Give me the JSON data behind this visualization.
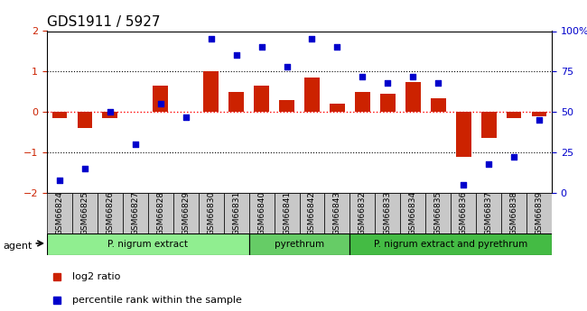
{
  "title": "GDS1911 / 5927",
  "samples": [
    "GSM66824",
    "GSM66825",
    "GSM66826",
    "GSM66827",
    "GSM66828",
    "GSM66829",
    "GSM66830",
    "GSM66831",
    "GSM66840",
    "GSM66841",
    "GSM66842",
    "GSM66843",
    "GSM66832",
    "GSM66833",
    "GSM66834",
    "GSM66835",
    "GSM66836",
    "GSM66837",
    "GSM66838",
    "GSM66839"
  ],
  "log2_ratio": [
    -0.15,
    -0.4,
    -0.15,
    0.0,
    0.65,
    0.0,
    1.0,
    0.5,
    0.65,
    0.3,
    0.85,
    0.2,
    0.5,
    0.45,
    0.75,
    0.35,
    -1.1,
    -0.65,
    -0.15,
    -0.1
  ],
  "percentile": [
    8,
    15,
    50,
    30,
    55,
    47,
    95,
    85,
    90,
    78,
    95,
    90,
    72,
    68,
    72,
    68,
    5,
    18,
    22,
    45
  ],
  "groups": [
    {
      "label": "P. nigrum extract",
      "start": 0,
      "end": 7,
      "color": "#90EE90"
    },
    {
      "label": "pyrethrum",
      "start": 8,
      "end": 11,
      "color": "#66CC66"
    },
    {
      "label": "P. nigrum extract and pyrethrum",
      "start": 12,
      "end": 19,
      "color": "#44BB44"
    }
  ],
  "bar_color": "#CC2200",
  "dot_color": "#0000CC",
  "bar_width": 0.6,
  "ylim": [
    -2,
    2
  ],
  "y2lim": [
    0,
    100
  ],
  "yticks": [
    -2,
    -1,
    0,
    1,
    2
  ],
  "y2ticks": [
    0,
    25,
    50,
    75,
    100
  ],
  "hlines": [
    -1,
    0,
    1
  ],
  "hline_colors": {
    "0": "red",
    "-1": "black",
    "1": "black"
  },
  "hline_styles": {
    "0": "dotted",
    "-1": "dotted",
    "1": "dotted"
  },
  "legend_items": [
    {
      "label": "log2 ratio",
      "color": "#CC2200",
      "marker": "s"
    },
    {
      "label": "percentile rank within the sample",
      "color": "#0000CC",
      "marker": "s"
    }
  ],
  "xlabel_fontsize": 7,
  "title_fontsize": 11,
  "tick_label_color_left": "#CC2200",
  "tick_label_color_right": "#0000CC"
}
